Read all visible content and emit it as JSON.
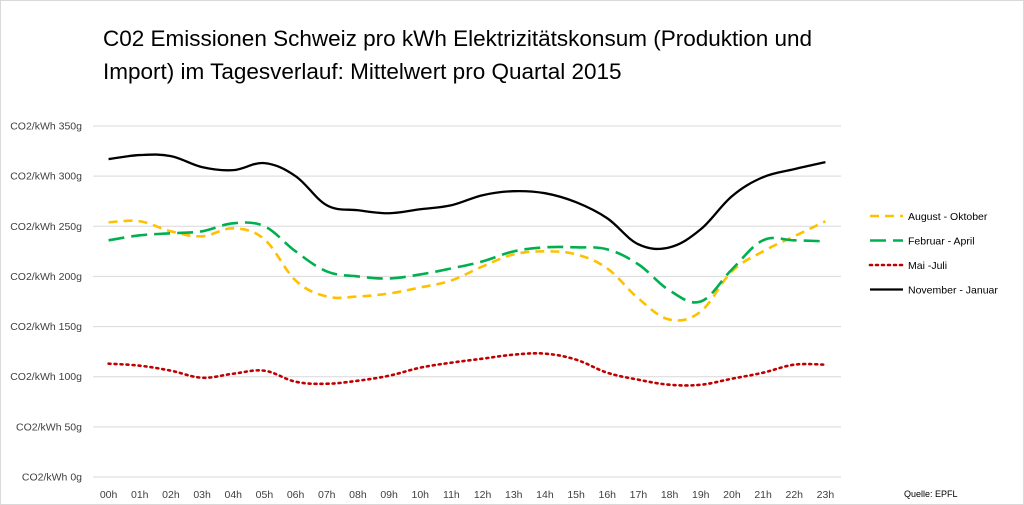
{
  "chart_data": {
    "type": "line",
    "title_lines": [
      "C02 Emissionen Schweiz pro kWh Elektrizitätskonsum (Produktion und",
      "Import) im Tagesverlauf: Mittelwert pro Quartal 2015"
    ],
    "xlabel": "",
    "ylabel": "",
    "x": [
      "00h",
      "01h",
      "02h",
      "03h",
      "04h",
      "05h",
      "06h",
      "07h",
      "08h",
      "09h",
      "10h",
      "11h",
      "12h",
      "13h",
      "14h",
      "15h",
      "16h",
      "17h",
      "18h",
      "19h",
      "20h",
      "21h",
      "22h",
      "23h"
    ],
    "ylim": [
      0,
      350
    ],
    "y_ticks": [
      {
        "value": 0,
        "label": "CO2/kWh 0g"
      },
      {
        "value": 50,
        "label": "CO2/kWh 50g"
      },
      {
        "value": 100,
        "label": "CO2/kWh 100g"
      },
      {
        "value": 150,
        "label": "CO2/kWh 150g"
      },
      {
        "value": 200,
        "label": "CO2/kWh 200g"
      },
      {
        "value": 250,
        "label": "CO2/kWh 250g"
      },
      {
        "value": 300,
        "label": "CO2/kWh 300g"
      },
      {
        "value": 350,
        "label": "CO2/kWh 350g"
      }
    ],
    "grid": true,
    "legend_position": "right",
    "series": [
      {
        "name": "August - Oktober",
        "color": "#ffc000",
        "style": "dashed",
        "values": [
          254,
          255,
          245,
          240,
          248,
          237,
          196,
          180,
          180,
          183,
          189,
          196,
          210,
          222,
          225,
          222,
          208,
          178,
          157,
          165,
          205,
          225,
          240,
          255
        ]
      },
      {
        "name": "Februar - April",
        "color": "#00b050",
        "style": "longdash",
        "values": [
          236,
          241,
          243,
          245,
          253,
          250,
          225,
          205,
          200,
          198,
          202,
          208,
          215,
          225,
          229,
          229,
          227,
          212,
          186,
          175,
          207,
          236,
          236,
          235
        ]
      },
      {
        "name": "Mai -Juli",
        "color": "#c00000",
        "style": "dotted",
        "values": [
          113,
          111,
          106,
          99,
          103,
          106,
          95,
          93,
          96,
          101,
          109,
          114,
          118,
          122,
          123,
          117,
          104,
          97,
          92,
          92,
          98,
          104,
          112,
          112
        ]
      },
      {
        "name": "November - Januar",
        "color": "#000000",
        "style": "solid",
        "values": [
          317,
          321,
          320,
          309,
          306,
          313,
          300,
          271,
          266,
          263,
          267,
          271,
          281,
          285,
          283,
          274,
          258,
          232,
          229,
          247,
          280,
          299,
          307,
          314
        ]
      }
    ],
    "source": "Quelle: EPFL"
  }
}
